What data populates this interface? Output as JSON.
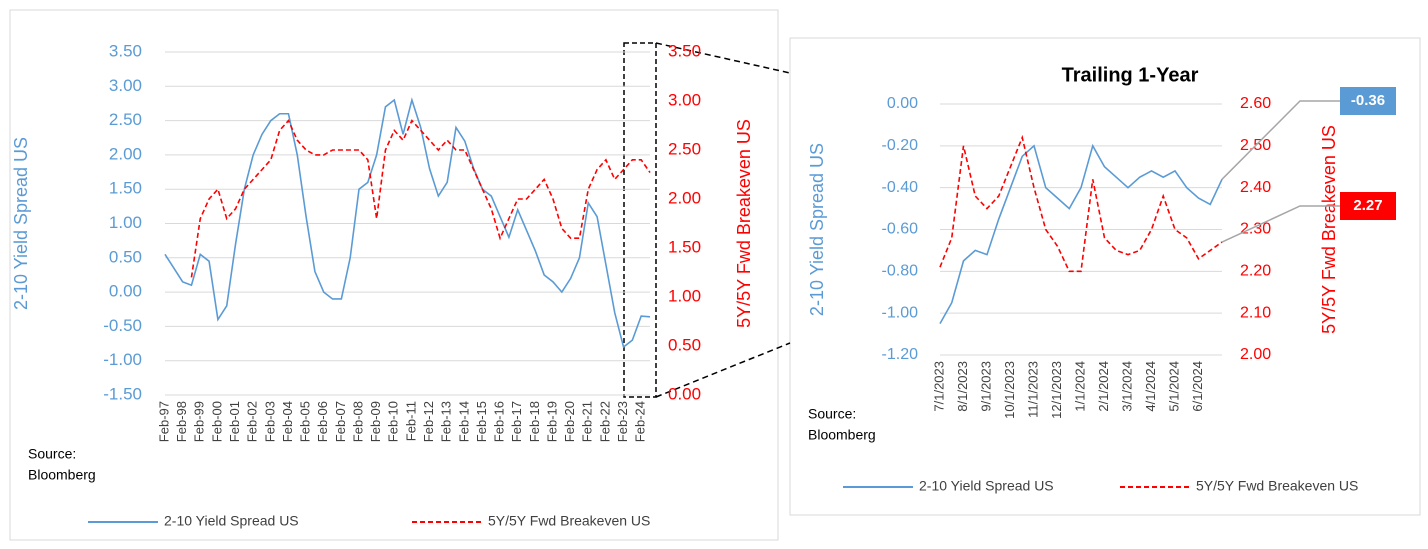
{
  "chart_data": [
    {
      "type": "line",
      "ylabel": "2-10 Yield Spread US",
      "y2label": "5Y/5Y Fwd Breakeven US",
      "source": [
        "Source:",
        "Bloomberg"
      ],
      "categories": [
        "Feb-97",
        null,
        "Feb-98",
        null,
        "Feb-99",
        null,
        "Feb-00",
        null,
        "Feb-01",
        null,
        "Feb-02",
        null,
        "Feb-03",
        null,
        "Feb-04",
        null,
        "Feb-05",
        null,
        "Feb-06",
        null,
        "Feb-07",
        null,
        "Feb-08",
        null,
        "Feb-09",
        null,
        "Feb-10",
        null,
        "Feb-11",
        null,
        "Feb-12",
        null,
        "Feb-13",
        null,
        "Feb-14",
        null,
        "Feb-15",
        null,
        "Feb-16",
        null,
        "Feb-17",
        null,
        "Feb-18",
        null,
        "Feb-19",
        null,
        "Feb-20",
        null,
        "Feb-21",
        null,
        "Feb-22",
        null,
        "Feb-23",
        null,
        "Feb-24",
        null
      ],
      "ylim": [
        -1.5,
        3.5
      ],
      "yticks": [
        {
          "value": -1.5,
          "label": "-1.50"
        },
        {
          "value": -1,
          "label": "-1.00"
        },
        {
          "value": -0.5,
          "label": "-0.50"
        },
        {
          "value": 0,
          "label": "0.00"
        },
        {
          "value": 0.5,
          "label": "0.50"
        },
        {
          "value": 1,
          "label": "1.00"
        },
        {
          "value": 1.5,
          "label": "1.50"
        },
        {
          "value": 2,
          "label": "2.00"
        },
        {
          "value": 2.5,
          "label": "2.50"
        },
        {
          "value": 3,
          "label": "3.00"
        },
        {
          "value": 3.5,
          "label": "3.50"
        }
      ],
      "y2lim": [
        0,
        3.5
      ],
      "y2ticks": [
        {
          "value": 0,
          "label": "0.00"
        },
        {
          "value": 0.5,
          "label": "0.50"
        },
        {
          "value": 1,
          "label": "1.00"
        },
        {
          "value": 1.5,
          "label": "1.50"
        },
        {
          "value": 2,
          "label": "2.00"
        },
        {
          "value": 2.5,
          "label": "2.50"
        },
        {
          "value": 3,
          "label": "3.00"
        },
        {
          "value": 3.5,
          "label": "3.50"
        }
      ],
      "grid": true,
      "series": [
        {
          "name": "2-10 Yield Spread US",
          "color": "#5b9bd5",
          "line_style": "solid",
          "values": [
            0.55,
            0.35,
            0.15,
            0.1,
            0.55,
            0.45,
            -0.4,
            -0.2,
            0.7,
            1.5,
            2.0,
            2.3,
            2.5,
            2.6,
            2.6,
            2.0,
            1.1,
            0.3,
            0.0,
            -0.1,
            -0.1,
            0.5,
            1.5,
            1.6,
            2.0,
            2.7,
            2.8,
            2.3,
            2.8,
            2.4,
            1.8,
            1.4,
            1.6,
            2.4,
            2.2,
            1.8,
            1.5,
            1.4,
            1.1,
            0.8,
            1.2,
            0.9,
            0.6,
            0.25,
            0.15,
            0.0,
            0.2,
            0.5,
            1.3,
            1.1,
            0.4,
            -0.3,
            -0.8,
            -0.7,
            -0.35,
            -0.36
          ]
        },
        {
          "name": "5Y/5Y Fwd Breakeven US",
          "color": "#ff0000",
          "line_style": "dashed",
          "axis": "y2",
          "values": [
            null,
            null,
            null,
            1.2,
            1.8,
            2.0,
            2.1,
            1.8,
            1.9,
            2.1,
            2.2,
            2.3,
            2.4,
            2.7,
            2.8,
            2.6,
            2.5,
            2.45,
            2.45,
            2.5,
            2.5,
            2.5,
            2.5,
            2.4,
            1.8,
            2.5,
            2.7,
            2.6,
            2.8,
            2.7,
            2.6,
            2.5,
            2.6,
            2.5,
            2.5,
            2.3,
            2.1,
            1.9,
            1.6,
            1.8,
            2.0,
            2.0,
            2.1,
            2.2,
            2.0,
            1.7,
            1.6,
            1.6,
            2.1,
            2.3,
            2.4,
            2.2,
            2.3,
            2.4,
            2.4,
            2.27
          ]
        }
      ]
    },
    {
      "type": "line",
      "title": "Trailing 1-Year",
      "ylabel": "2-10 Yield Spread US",
      "y2label": "5Y/5Y Fwd Breakeven US",
      "source": [
        "Source:",
        "Bloomberg"
      ],
      "end_labels": true,
      "categories": [
        "7/1/2023",
        null,
        "8/1/2023",
        null,
        "9/1/2023",
        null,
        "10/1/2023",
        null,
        "11/1/2023",
        null,
        "12/1/2023",
        null,
        "1/1/2024",
        null,
        "2/1/2024",
        null,
        "3/1/2024",
        null,
        "4/1/2024",
        null,
        "5/1/2024",
        null,
        "6/1/2024",
        null,
        null
      ],
      "ylim": [
        -1.2,
        0
      ],
      "yticks": [
        {
          "value": -1.2,
          "label": "-1.20"
        },
        {
          "value": -1,
          "label": "-1.00"
        },
        {
          "value": -0.8,
          "label": "-0.80"
        },
        {
          "value": -0.6,
          "label": "-0.60"
        },
        {
          "value": -0.4,
          "label": "-0.40"
        },
        {
          "value": -0.2,
          "label": "-0.20"
        },
        {
          "value": 0,
          "label": "0.00"
        }
      ],
      "y2lim": [
        2,
        2.6
      ],
      "y2ticks": [
        {
          "value": 2,
          "label": "2.00"
        },
        {
          "value": 2.1,
          "label": "2.10"
        },
        {
          "value": 2.2,
          "label": "2.20"
        },
        {
          "value": 2.3,
          "label": "2.30"
        },
        {
          "value": 2.4,
          "label": "2.40"
        },
        {
          "value": 2.5,
          "label": "2.50"
        },
        {
          "value": 2.6,
          "label": "2.60"
        }
      ],
      "grid": true,
      "series": [
        {
          "name": "2-10 Yield Spread US",
          "color": "#5b9bd5",
          "line_style": "solid",
          "values": [
            -1.05,
            -0.95,
            -0.75,
            -0.7,
            -0.72,
            -0.55,
            -0.4,
            -0.25,
            -0.2,
            -0.4,
            -0.45,
            -0.5,
            -0.4,
            -0.2,
            -0.3,
            -0.35,
            -0.4,
            -0.35,
            -0.32,
            -0.35,
            -0.32,
            -0.4,
            -0.45,
            -0.48,
            -0.36
          ]
        },
        {
          "name": "5Y/5Y Fwd Breakeven US",
          "color": "#ff0000",
          "line_style": "dashed",
          "axis": "y2",
          "values": [
            2.21,
            2.28,
            2.5,
            2.38,
            2.35,
            2.38,
            2.45,
            2.52,
            2.4,
            2.3,
            2.26,
            2.2,
            2.2,
            2.42,
            2.28,
            2.25,
            2.24,
            2.25,
            2.3,
            2.38,
            2.3,
            2.28,
            2.23,
            2.25,
            2.27
          ]
        }
      ]
    }
  ]
}
